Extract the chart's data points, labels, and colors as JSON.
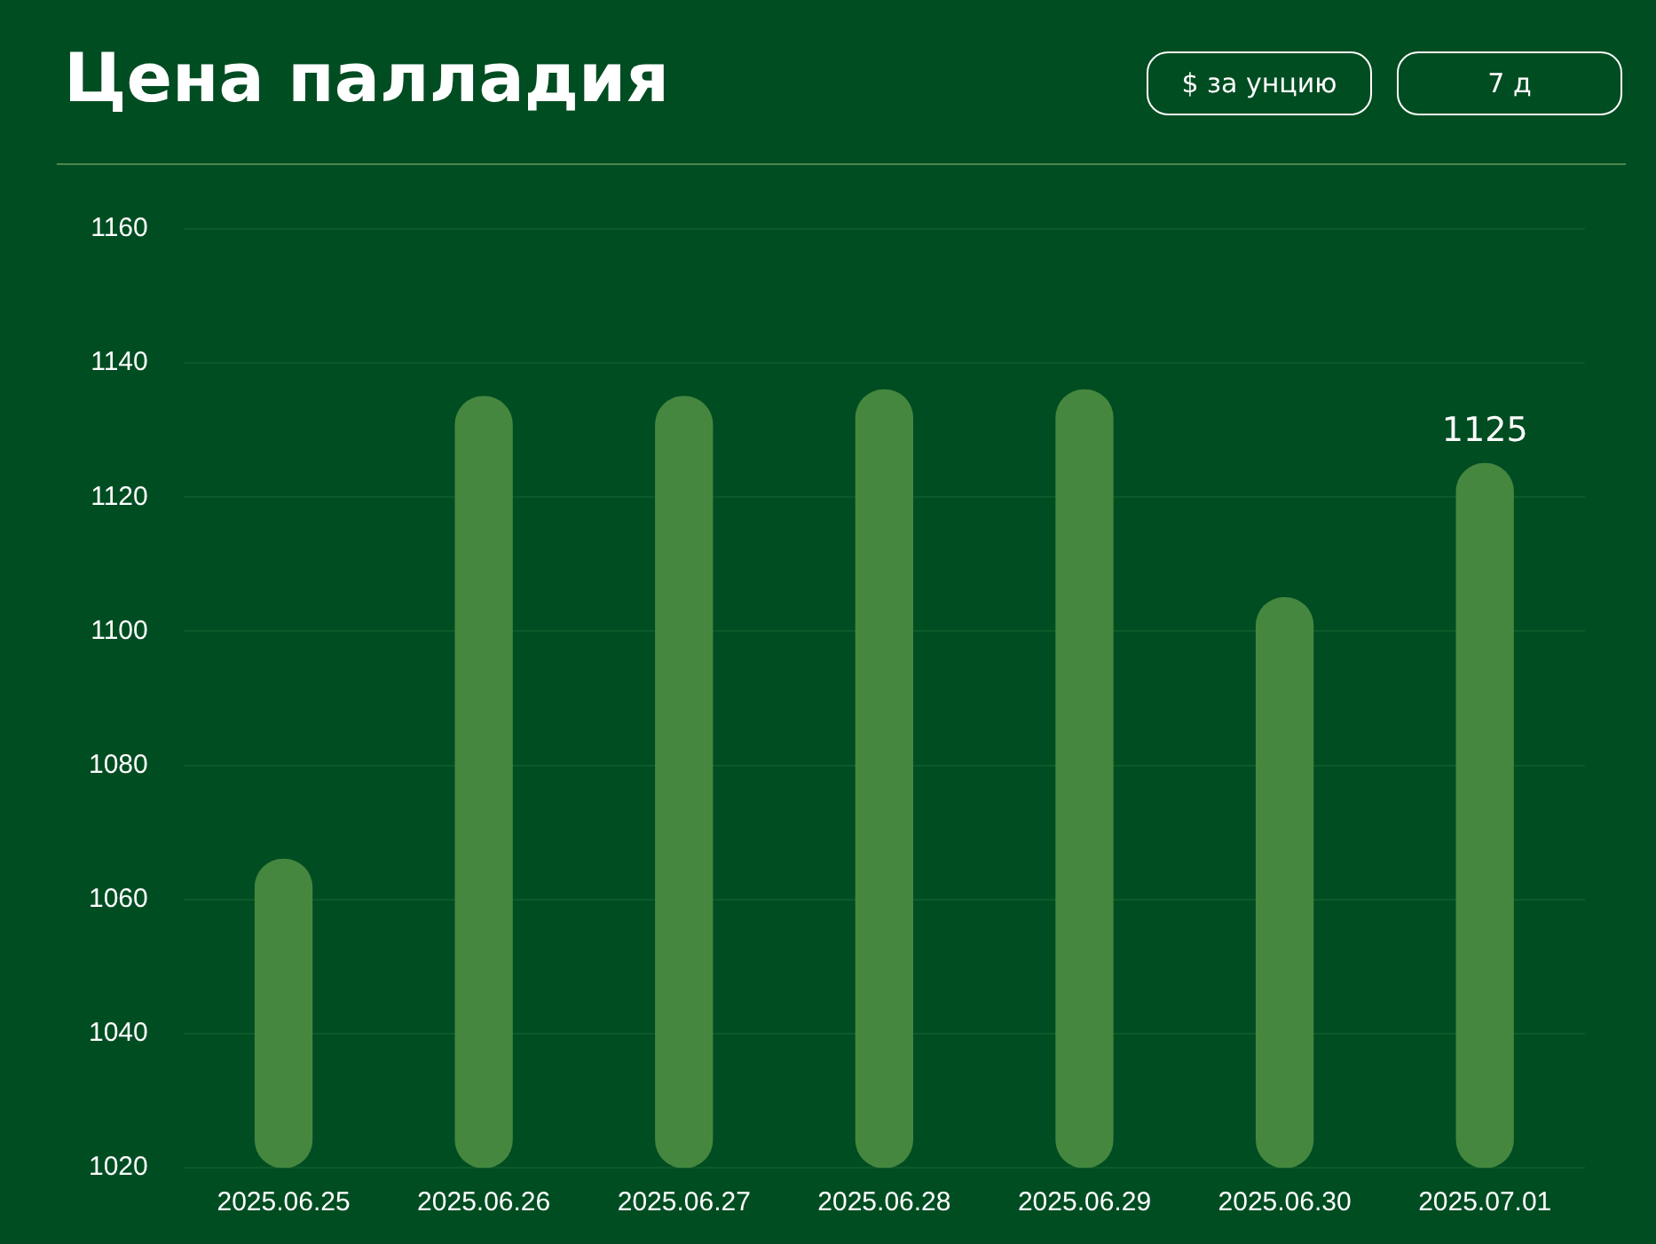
{
  "chart_data": {
    "type": "bar",
    "title": "Цена палладия",
    "annotations": [
      "$ за унцию",
      "7 д"
    ],
    "categories": [
      "2025.06.25",
      "2025.06.26",
      "2025.06.27",
      "2025.06.28",
      "2025.06.29",
      "2025.06.30",
      "2025.07.01"
    ],
    "values": [
      1066,
      1135,
      1135,
      1136,
      1136,
      1105,
      1125
    ],
    "value_labels": [
      null,
      null,
      null,
      null,
      null,
      null,
      "1125"
    ],
    "color": "#46873f",
    "ylim": [
      1020,
      1160
    ],
    "yticks": [
      1020,
      1040,
      1060,
      1080,
      1100,
      1120,
      1140,
      1160
    ],
    "grid": "y",
    "legend": false
  }
}
